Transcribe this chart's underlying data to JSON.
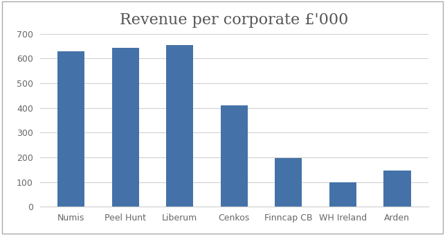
{
  "title": "Revenue per corporate £'000",
  "categories": [
    "Numis",
    "Peel Hunt",
    "Liberum",
    "Cenkos",
    "Finncap CB",
    "WH Ireland",
    "Arden"
  ],
  "values": [
    628,
    643,
    655,
    410,
    198,
    100,
    147
  ],
  "bar_color": "#4472a8",
  "ylim": [
    0,
    700
  ],
  "yticks": [
    0,
    100,
    200,
    300,
    400,
    500,
    600,
    700
  ],
  "title_fontsize": 16,
  "tick_fontsize": 9,
  "background_color": "#ffffff",
  "grid_color": "#d0d0d0",
  "bar_width": 0.5,
  "border_color": "#aaaaaa"
}
